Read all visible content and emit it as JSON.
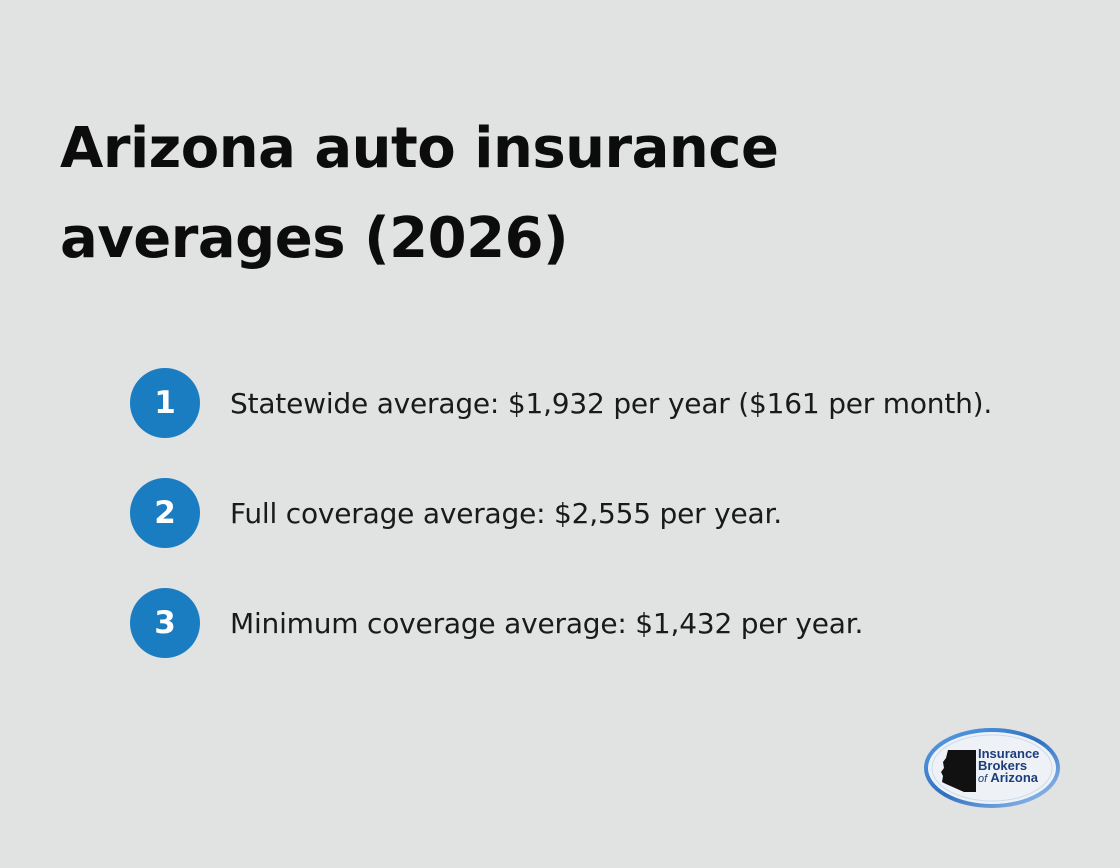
{
  "title": "Arizona auto insurance averages (2026)",
  "items": [
    {
      "number": "1",
      "text": "Statewide average: $1,932 per year ($161 per month)."
    },
    {
      "number": "2",
      "text": "Full coverage average: $2,555 per year."
    },
    {
      "number": "3",
      "text": "Minimum coverage average: $1,432 per year."
    }
  ],
  "logo": {
    "line1": "Insurance",
    "line2": "Brokers",
    "line3_of": "of",
    "line3_name": "Arizona",
    "icon": "arizona-state-silhouette",
    "colors": {
      "ring": "#2f6fc0",
      "state": "#111111",
      "text": "#1c3d7a"
    }
  },
  "colors": {
    "background": "#e1e2e2",
    "accent": "#1b7dc1",
    "title": "#0c0c0c"
  }
}
